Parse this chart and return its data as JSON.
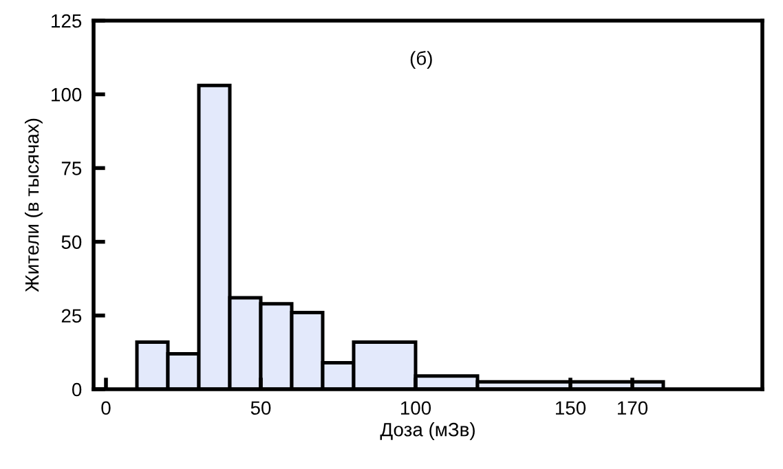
{
  "chart_data": {
    "type": "histogram",
    "xlabel": "Доза (мЗв)",
    "ylabel": "Жители (в тысячах)",
    "annotations": [
      "(б)"
    ],
    "bins": [
      10,
      20,
      30,
      40,
      50,
      60,
      70,
      80,
      100,
      120,
      180
    ],
    "values": [
      16,
      12,
      103,
      31,
      29,
      26,
      9,
      16,
      4.5,
      2.5
    ],
    "color": "#e3e9fb",
    "xlim": [
      -4,
      212
    ],
    "xticks": [
      0,
      50,
      100,
      150,
      170
    ],
    "ylim": [
      0,
      125
    ],
    "yticks": [
      0,
      25,
      50,
      75,
      100,
      125
    ],
    "grid": false,
    "legend": false
  }
}
